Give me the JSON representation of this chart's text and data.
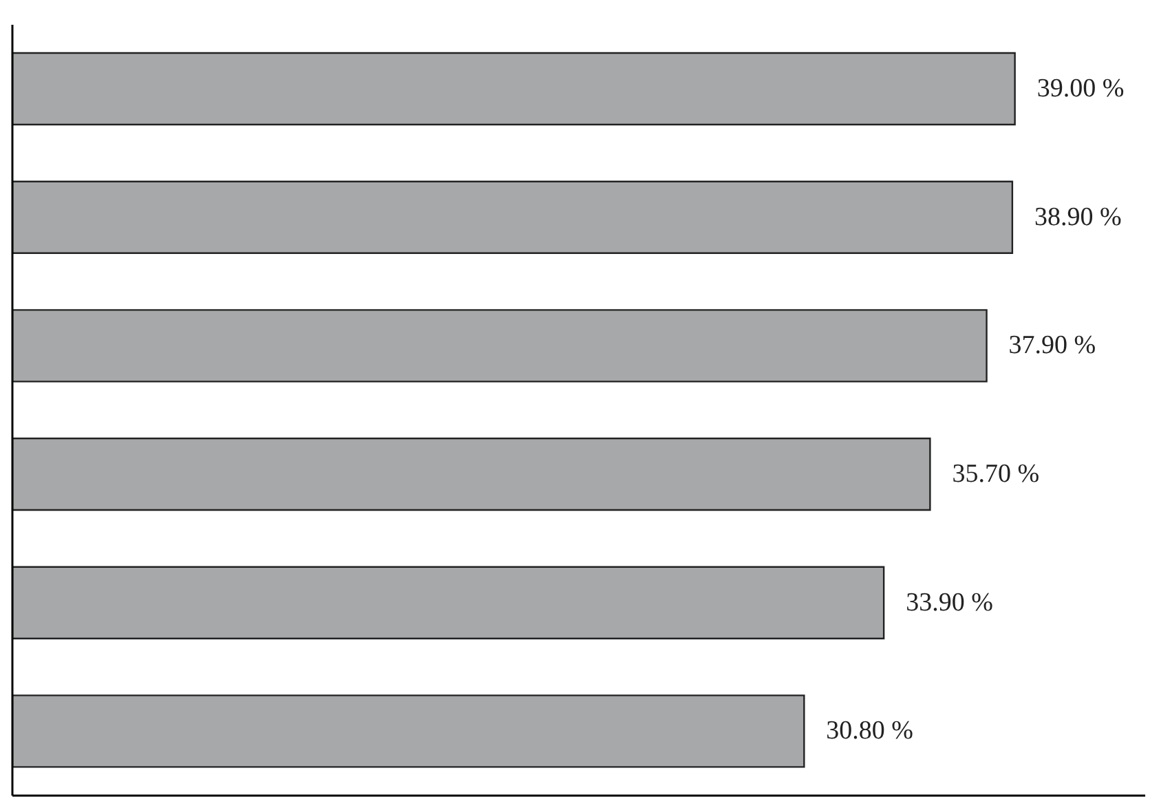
{
  "chart_data": {
    "type": "bar",
    "orientation": "horizontal",
    "categories": [
      null,
      null,
      null,
      null,
      null,
      null
    ],
    "values": [
      39.0,
      38.9,
      37.9,
      35.7,
      33.9,
      30.8
    ],
    "value_labels": [
      "39.00 %",
      "38.90 %",
      "37.90 %",
      "35.70 %",
      "33.90 %",
      "30.80 %"
    ],
    "color": "#a7a8aa",
    "grid": false,
    "legend": false
  }
}
